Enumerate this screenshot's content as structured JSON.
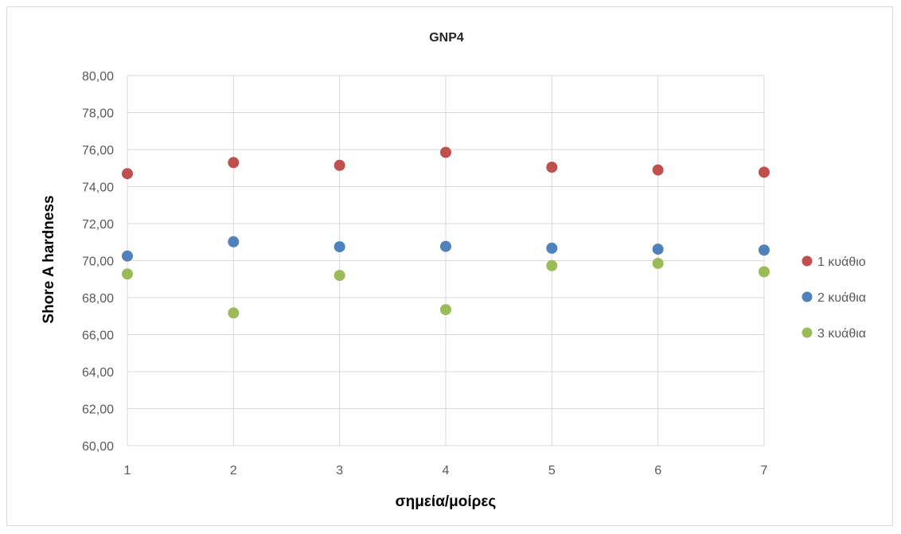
{
  "chart_data": {
    "type": "scatter",
    "title": "GNP4",
    "xlabel": "σημεία/μοίρες",
    "ylabel": "Shore A hardness",
    "x": [
      1,
      2,
      3,
      4,
      5,
      6,
      7
    ],
    "xlim": [
      1,
      7
    ],
    "ylim": [
      60,
      80
    ],
    "y_ticks": [
      "60,00",
      "62,00",
      "64,00",
      "66,00",
      "68,00",
      "70,00",
      "72,00",
      "74,00",
      "76,00",
      "78,00",
      "80,00"
    ],
    "x_ticks": [
      "1",
      "2",
      "3",
      "4",
      "5",
      "6",
      "7"
    ],
    "grid": true,
    "legend_position": "right",
    "series": [
      {
        "name": "1 κυάθιο",
        "color": "#c0504d",
        "values": [
          74.7,
          75.3,
          75.15,
          75.85,
          75.05,
          74.9,
          74.78
        ]
      },
      {
        "name": "2 κυάθια",
        "color": "#4f81bd",
        "values": [
          70.25,
          71.02,
          70.75,
          70.77,
          70.67,
          70.62,
          70.57
        ]
      },
      {
        "name": "3 κυάθια",
        "color": "#9bbb59",
        "values": [
          69.28,
          67.17,
          69.2,
          67.35,
          69.73,
          69.85,
          69.4
        ]
      }
    ]
  }
}
